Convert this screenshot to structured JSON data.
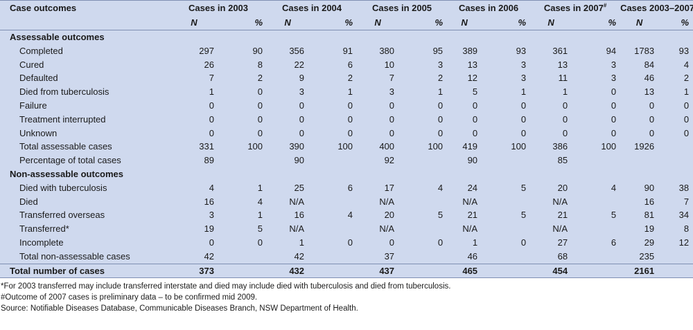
{
  "header": {
    "row_label": "Case outcomes",
    "years": [
      "Cases in 2003",
      "Cases in 2004",
      "Cases in 2005",
      "Cases in 2006",
      "Cases in 2007",
      "Cases 2003–2007"
    ],
    "year_2007_note_mark": "#",
    "n_label": "N",
    "pct_label": "%"
  },
  "sections": [
    {
      "title": "Assessable outcomes",
      "rows": [
        {
          "label": "Completed",
          "cells": [
            "297",
            "90",
            "356",
            "91",
            "380",
            "95",
            "389",
            "93",
            "361",
            "94",
            "1783",
            "93"
          ]
        },
        {
          "label": "Cured",
          "cells": [
            "26",
            "8",
            "22",
            "6",
            "10",
            "3",
            "13",
            "3",
            "13",
            "3",
            "84",
            "4"
          ]
        },
        {
          "label": "Defaulted",
          "cells": [
            "7",
            "2",
            "9",
            "2",
            "7",
            "2",
            "12",
            "3",
            "11",
            "3",
            "46",
            "2"
          ]
        },
        {
          "label": "Died from tuberculosis",
          "cells": [
            "1",
            "0",
            "3",
            "1",
            "3",
            "1",
            "5",
            "1",
            "1",
            "0",
            "13",
            "1"
          ]
        },
        {
          "label": "Failure",
          "cells": [
            "0",
            "0",
            "0",
            "0",
            "0",
            "0",
            "0",
            "0",
            "0",
            "0",
            "0",
            "0"
          ]
        },
        {
          "label": "Treatment interrupted",
          "cells": [
            "0",
            "0",
            "0",
            "0",
            "0",
            "0",
            "0",
            "0",
            "0",
            "0",
            "0",
            "0"
          ]
        },
        {
          "label": "Unknown",
          "cells": [
            "0",
            "0",
            "0",
            "0",
            "0",
            "0",
            "0",
            "0",
            "0",
            "0",
            "0",
            "0"
          ]
        },
        {
          "label": "Total assessable cases",
          "cells": [
            "331",
            "100",
            "390",
            "100",
            "400",
            "100",
            "419",
            "100",
            "386",
            "100",
            "1926",
            ""
          ]
        },
        {
          "label": "Percentage of total cases",
          "cells": [
            "89",
            "",
            "90",
            "",
            "92",
            "",
            "90",
            "",
            "85",
            "",
            "",
            ""
          ]
        }
      ]
    },
    {
      "title": "Non-assessable outcomes",
      "rows": [
        {
          "label": "Died with tuberculosis",
          "cells": [
            "4",
            "1",
            "25",
            "6",
            "17",
            "4",
            "24",
            "5",
            "20",
            "4",
            "90",
            "38"
          ]
        },
        {
          "label": "Died",
          "cells": [
            "16",
            "4",
            "N/A",
            "",
            "N/A",
            "",
            "N/A",
            "",
            "N/A",
            "",
            "16",
            "7"
          ]
        },
        {
          "label": "Transferred overseas",
          "cells": [
            "3",
            "1",
            "16",
            "4",
            "20",
            "5",
            "21",
            "5",
            "21",
            "5",
            "81",
            "34"
          ]
        },
        {
          "label": "Transferred*",
          "cells": [
            "19",
            "5",
            "N/A",
            "",
            "N/A",
            "",
            "N/A",
            "",
            "N/A",
            "",
            "19",
            "8"
          ]
        },
        {
          "label": "Incomplete",
          "cells": [
            "0",
            "0",
            "1",
            "0",
            "0",
            "0",
            "1",
            "0",
            "27",
            "6",
            "29",
            "12"
          ]
        },
        {
          "label": "Total non-assessable cases",
          "cells": [
            "42",
            "",
            "42",
            "",
            "37",
            "",
            "46",
            "",
            "68",
            "",
            "235",
            ""
          ]
        }
      ]
    }
  ],
  "total": {
    "label": "Total number of cases",
    "cells": [
      "373",
      "",
      "432",
      "",
      "437",
      "",
      "465",
      "",
      "454",
      "",
      "2161",
      ""
    ]
  },
  "footnotes": [
    "*For 2003 transferred may include transferred interstate and died may include died with tuberculosis and died from tuberculosis.",
    "#Outcome of 2007 cases is preliminary data – to be confirmed mid 2009.",
    "Source: Notifiable Diseases Database, Communicable Diseases Branch, NSW Department of Health."
  ],
  "colors": {
    "panel": "#cfd9ee",
    "rule": "#7f8fb3"
  }
}
